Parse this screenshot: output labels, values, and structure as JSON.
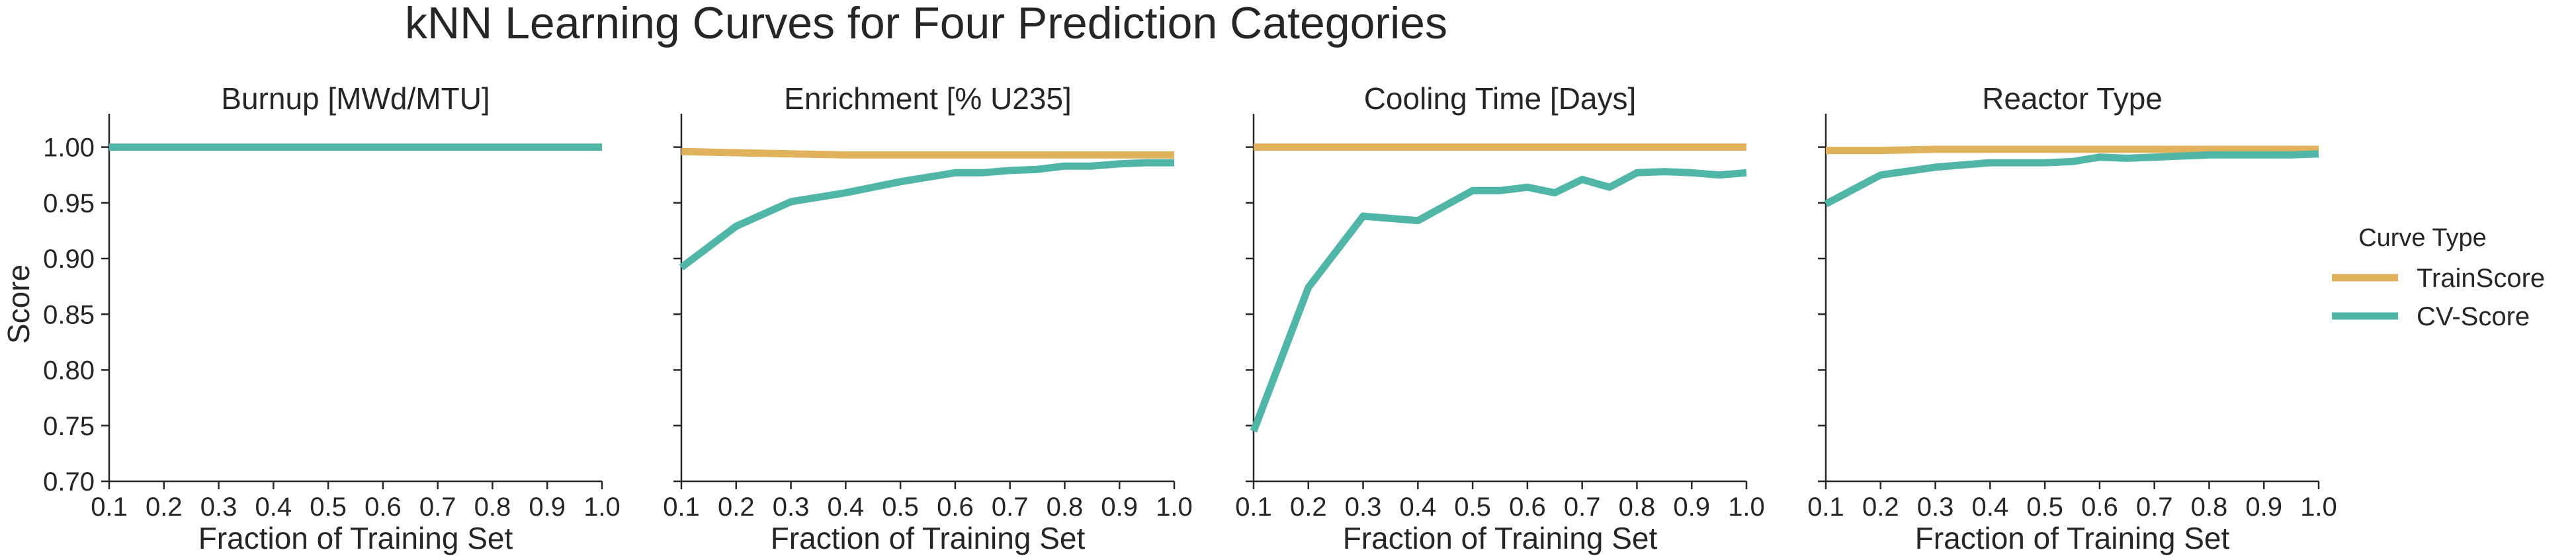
{
  "chart_data": {
    "type": "line",
    "title": "kNN Learning Curves for Four Prediction Categories",
    "ylabel": "Score",
    "xlabel": "Fraction of Training Set",
    "xlim": [
      0.1,
      1.0
    ],
    "ylim": [
      0.7,
      1.03
    ],
    "xticks": [
      "0.1",
      "0.2",
      "0.3",
      "0.4",
      "0.5",
      "0.6",
      "0.7",
      "0.8",
      "0.9",
      "1.0"
    ],
    "yticks": [
      "0.70",
      "0.75",
      "0.80",
      "0.85",
      "0.90",
      "0.95",
      "1.00"
    ],
    "grid": false,
    "legend": {
      "title": "Curve Type",
      "placement": "right",
      "entries": [
        {
          "name": "TrainScore",
          "color": "#E0B25C"
        },
        {
          "name": "CV-Score",
          "color": "#4FB6A8"
        }
      ]
    },
    "panels": [
      {
        "title": "Burnup [MWd/MTU]",
        "series": [
          {
            "name": "TrainScore",
            "color": "#E0B25C",
            "x": [
              0.1,
              0.2,
              0.3,
              0.4,
              0.5,
              0.6,
              0.65,
              0.7,
              0.75,
              0.8,
              0.85,
              0.9,
              0.95,
              1.0
            ],
            "y": [
              1.0,
              1.0,
              1.0,
              1.0,
              1.0,
              1.0,
              1.0,
              1.0,
              1.0,
              1.0,
              1.0,
              1.0,
              1.0,
              1.0
            ]
          },
          {
            "name": "CV-Score",
            "color": "#4FB6A8",
            "x": [
              0.1,
              0.2,
              0.3,
              0.4,
              0.5,
              0.6,
              0.65,
              0.7,
              0.75,
              0.8,
              0.85,
              0.9,
              0.95,
              1.0
            ],
            "y": [
              1.0,
              1.0,
              1.0,
              1.0,
              1.0,
              1.0,
              1.0,
              1.0,
              1.0,
              1.0,
              1.0,
              1.0,
              1.0,
              1.0
            ]
          }
        ]
      },
      {
        "title": "Enrichment [% U235]",
        "series": [
          {
            "name": "TrainScore",
            "color": "#E0B25C",
            "x": [
              0.1,
              0.2,
              0.3,
              0.4,
              0.5,
              0.6,
              0.65,
              0.7,
              0.75,
              0.8,
              0.85,
              0.9,
              0.95,
              1.0
            ],
            "y": [
              0.996,
              0.995,
              0.994,
              0.993,
              0.993,
              0.993,
              0.993,
              0.993,
              0.993,
              0.993,
              0.993,
              0.993,
              0.993,
              0.993
            ]
          },
          {
            "name": "CV-Score",
            "color": "#4FB6A8",
            "x": [
              0.1,
              0.2,
              0.3,
              0.4,
              0.5,
              0.6,
              0.65,
              0.7,
              0.75,
              0.8,
              0.85,
              0.9,
              0.95,
              1.0
            ],
            "y": [
              0.892,
              0.929,
              0.951,
              0.959,
              0.969,
              0.977,
              0.977,
              0.979,
              0.98,
              0.983,
              0.983,
              0.985,
              0.986,
              0.986
            ]
          }
        ]
      },
      {
        "title": "Cooling Time [Days]",
        "series": [
          {
            "name": "TrainScore",
            "color": "#E0B25C",
            "x": [
              0.1,
              0.2,
              0.3,
              0.4,
              0.5,
              0.6,
              0.65,
              0.7,
              0.75,
              0.8,
              0.85,
              0.9,
              0.95,
              1.0
            ],
            "y": [
              1.0,
              1.0,
              1.0,
              1.0,
              1.0,
              1.0,
              1.0,
              1.0,
              1.0,
              1.0,
              1.0,
              1.0,
              1.0,
              1.0
            ]
          },
          {
            "name": "CV-Score",
            "color": "#4FB6A8",
            "x": [
              0.1,
              0.2,
              0.3,
              0.4,
              0.5,
              0.55,
              0.6,
              0.65,
              0.7,
              0.75,
              0.8,
              0.85,
              0.9,
              0.95,
              1.0
            ],
            "y": [
              0.745,
              0.874,
              0.938,
              0.934,
              0.961,
              0.961,
              0.964,
              0.959,
              0.971,
              0.964,
              0.977,
              0.978,
              0.977,
              0.975,
              0.977
            ]
          }
        ]
      },
      {
        "title": "Reactor Type",
        "series": [
          {
            "name": "TrainScore",
            "color": "#E0B25C",
            "x": [
              0.1,
              0.2,
              0.3,
              0.4,
              0.5,
              0.6,
              0.65,
              0.7,
              0.75,
              0.8,
              0.85,
              0.9,
              0.95,
              1.0
            ],
            "y": [
              0.997,
              0.997,
              0.998,
              0.998,
              0.998,
              0.998,
              0.998,
              0.998,
              0.998,
              0.998,
              0.998,
              0.998,
              0.998,
              0.998
            ]
          },
          {
            "name": "CV-Score",
            "color": "#4FB6A8",
            "x": [
              0.1,
              0.2,
              0.3,
              0.4,
              0.5,
              0.55,
              0.6,
              0.65,
              0.7,
              0.75,
              0.8,
              0.85,
              0.9,
              0.95,
              1.0
            ],
            "y": [
              0.949,
              0.975,
              0.982,
              0.986,
              0.986,
              0.987,
              0.991,
              0.99,
              0.991,
              0.992,
              0.993,
              0.993,
              0.993,
              0.993,
              0.994
            ]
          }
        ]
      }
    ]
  }
}
